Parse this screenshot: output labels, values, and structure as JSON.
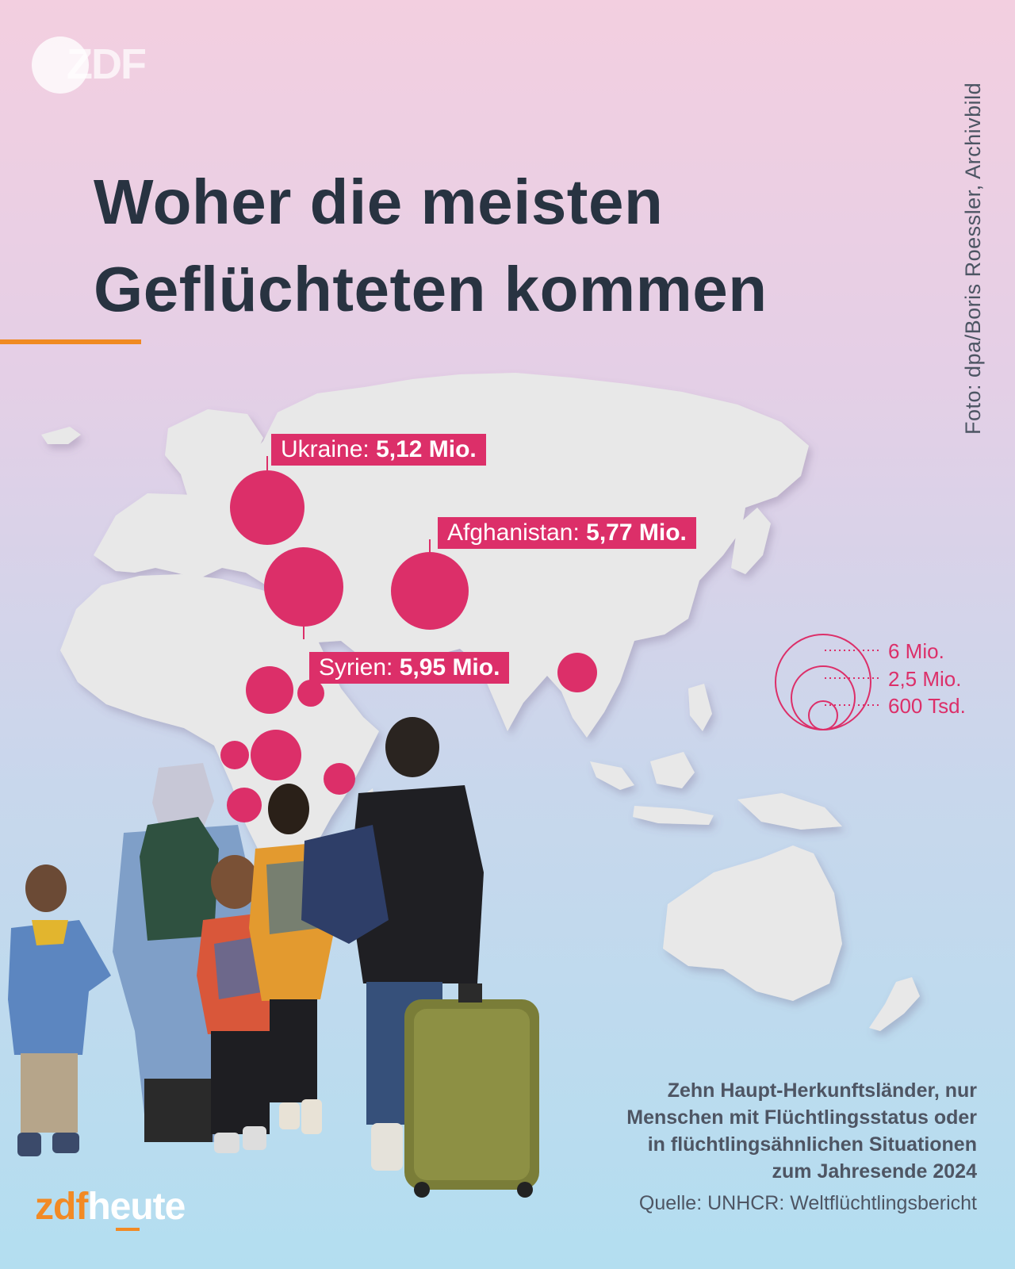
{
  "header": {
    "logo_text": "ZDF",
    "title_line1": "Woher die meisten",
    "title_line2": "Geflüchteten kommen",
    "photo_credit": "Foto: dpa/Boris Roessler, Archivbild"
  },
  "map_labels": {
    "ukraine": {
      "name": "Ukraine:",
      "value": "5,12 Mio."
    },
    "afghanistan": {
      "name": "Afghanistan:",
      "value": "5,77 Mio."
    },
    "syria": {
      "name": "Syrien:",
      "value": "5,95 Mio."
    }
  },
  "legend": {
    "items": [
      "6 Mio.",
      "2,5 Mio.",
      "600 Tsd."
    ],
    "color": "#dc2f69"
  },
  "footnote": {
    "line1": "Zehn Haupt-Herkunftsländer, nur",
    "line2": "Menschen mit Flüchtlingsstatus oder",
    "line3": "in flüchtlingsähnlichen Situationen",
    "line4": "zum Jahresende 2024",
    "source": "Quelle: UNHCR: Weltflüchtlingsbericht"
  },
  "brand": {
    "part1": "zdf",
    "part2": "heute"
  },
  "colors": {
    "accent": "#f08a22",
    "bubble": "#dc2f69",
    "land": "#e8e8e8",
    "title": "#283341"
  }
}
